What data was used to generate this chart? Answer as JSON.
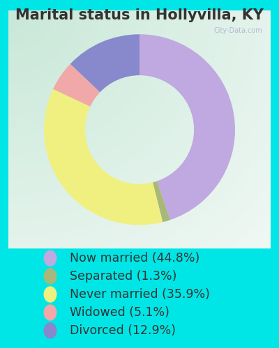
{
  "title": "Marital status in Hollyvilla, KY",
  "categories": [
    "Now married",
    "Separated",
    "Never married",
    "Widowed",
    "Divorced"
  ],
  "values": [
    44.8,
    1.3,
    35.9,
    5.1,
    12.9
  ],
  "colors": [
    "#c0a8e0",
    "#a8b878",
    "#f0f080",
    "#f0a8a8",
    "#8888cc"
  ],
  "legend_labels": [
    "Now married (44.8%)",
    "Separated (1.3%)",
    "Never married (35.9%)",
    "Widowed (5.1%)",
    "Divorced (12.9%)"
  ],
  "bg_color_outer": "#00e5e5",
  "title_color": "#333333",
  "title_fontsize": 15,
  "legend_fontsize": 12.5,
  "legend_text_color": "#333333",
  "watermark_text": "City-Data.com",
  "watermark_color": "#aaaacc"
}
